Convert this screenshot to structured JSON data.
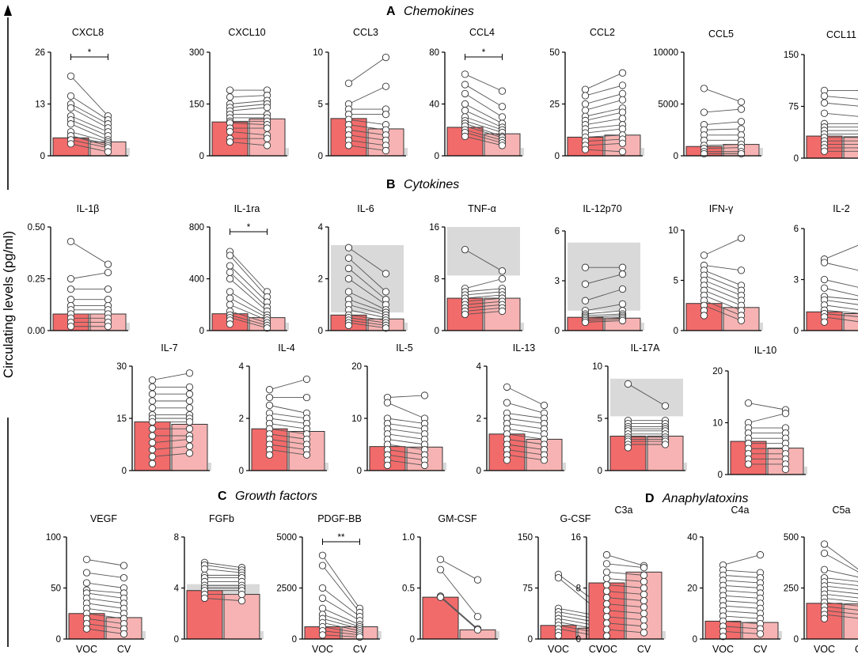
{
  "y_axis_label": "Circulating levels (pg/ml)",
  "sections": [
    {
      "letter": "A",
      "name": "Chemokines"
    },
    {
      "letter": "B",
      "name": "Cytokines"
    },
    {
      "letter": "C",
      "name": "Growth factors"
    },
    {
      "letter": "D",
      "name": "Anaphylatoxins"
    }
  ],
  "group_labels": [
    "VOC",
    "CV"
  ],
  "colors": {
    "voc_bar": "#f26b6b",
    "cv_bar": "#f7b3b3",
    "reference_band": "#d9d9d9",
    "point_fill": "#ffffff",
    "line": "#555555"
  },
  "chart_data": [
    {
      "type": "bar",
      "name": "CXCL8",
      "title": "CXCL8",
      "ylim": [
        0,
        26
      ],
      "yticks": [
        "0",
        "13",
        "26"
      ],
      "categories": [
        "VOC",
        "CV"
      ],
      "values": [
        4.5,
        3.5
      ],
      "significance": "*",
      "voc": [
        20,
        15,
        13,
        12,
        10,
        9,
        8,
        6,
        5,
        5,
        4,
        3
      ],
      "cv": [
        10,
        9,
        8,
        7,
        6,
        5,
        4,
        3.5,
        3,
        2.5,
        2,
        1
      ]
    },
    {
      "type": "bar",
      "name": "CXCL10",
      "title": "CXCL10",
      "ylim": [
        0,
        300
      ],
      "yticks": [
        "0",
        "150",
        "300"
      ],
      "categories": [
        "VOC",
        "CV"
      ],
      "values": [
        98,
        107
      ],
      "voc": [
        190,
        170,
        150,
        140,
        130,
        120,
        110,
        100,
        95,
        80,
        70,
        50,
        40
      ],
      "cv": [
        190,
        175,
        160,
        150,
        140,
        120,
        110,
        100,
        90,
        80,
        60,
        50,
        30
      ]
    },
    {
      "type": "bar",
      "name": "CCL3",
      "title": "CCL3",
      "ylim": [
        0,
        10
      ],
      "yticks": [
        "0",
        "5",
        "10"
      ],
      "categories": [
        "VOC",
        "CV"
      ],
      "values": [
        3.6,
        2.6
      ],
      "voc": [
        7,
        5,
        4.5,
        4,
        3.5,
        3,
        2.5,
        2,
        1.5,
        1
      ],
      "cv": [
        9.5,
        6.7,
        4.5,
        4,
        3,
        2.5,
        2,
        1.5,
        1,
        0.5
      ]
    },
    {
      "type": "bar",
      "name": "CCL4",
      "title": "CCL4",
      "ylim": [
        0,
        80
      ],
      "yticks": [
        "0",
        "40",
        "80"
      ],
      "categories": [
        "VOC",
        "CV"
      ],
      "values": [
        22,
        17
      ],
      "significance": "*",
      "voc": [
        63,
        55,
        48,
        40,
        35,
        30,
        27,
        25,
        23,
        20,
        18,
        15
      ],
      "cv": [
        50,
        38,
        30,
        25,
        22,
        20,
        18,
        15,
        14,
        12,
        10,
        8
      ]
    },
    {
      "type": "bar",
      "name": "CCL2",
      "title": "CCL2",
      "ylim": [
        0,
        50
      ],
      "yticks": [
        "0",
        "25",
        "50"
      ],
      "categories": [
        "VOC",
        "CV"
      ],
      "values": [
        9,
        10
      ],
      "voc": [
        32,
        29,
        25,
        22,
        19,
        17,
        15,
        13,
        11,
        9,
        7,
        5,
        3
      ],
      "cv": [
        40,
        34,
        30,
        27,
        23,
        21,
        18,
        15,
        13,
        10,
        8,
        6,
        2
      ]
    },
    {
      "type": "bar",
      "name": "CCL5",
      "title": "CCL5",
      "ylim": [
        0,
        10000
      ],
      "yticks": [
        "0",
        "5000",
        "10000"
      ],
      "categories": [
        "VOC",
        "CV"
      ],
      "values": [
        900,
        1100
      ],
      "voc": [
        6500,
        4200,
        3000,
        2500,
        2000,
        1500,
        1000,
        700,
        400,
        200
      ],
      "cv": [
        5200,
        4500,
        3300,
        2600,
        2000,
        1500,
        1100,
        800,
        400,
        200
      ]
    },
    {
      "type": "bar",
      "name": "CCL11",
      "title": "CCL11",
      "ylim": [
        0,
        150
      ],
      "yticks": [
        "0",
        "75",
        "150"
      ],
      "categories": [
        "VOC",
        "CV"
      ],
      "values": [
        32,
        31
      ],
      "voc": [
        98,
        90,
        80,
        65,
        50,
        45,
        40,
        35,
        30,
        25,
        20,
        15,
        10
      ],
      "cv": [
        98,
        85,
        75,
        60,
        50,
        45,
        40,
        35,
        30,
        25,
        20,
        15,
        10
      ]
    },
    {
      "type": "bar",
      "name": "IL-1β",
      "title": "IL-1β",
      "ylim": [
        0,
        0.5
      ],
      "yticks": [
        "0.00",
        "0.25",
        "0.50"
      ],
      "categories": [
        "VOC",
        "CV"
      ],
      "values": [
        0.08,
        0.08
      ],
      "voc": [
        0.43,
        0.25,
        0.2,
        0.15,
        0.12,
        0.1,
        0.08,
        0.06,
        0.04,
        0.02
      ],
      "cv": [
        0.32,
        0.28,
        0.2,
        0.15,
        0.12,
        0.1,
        0.08,
        0.06,
        0.04,
        0.02
      ]
    },
    {
      "type": "bar",
      "name": "IL-1ra",
      "title": "IL-1ra",
      "ylim": [
        0,
        800
      ],
      "yticks": [
        "0",
        "400",
        "800"
      ],
      "categories": [
        "VOC",
        "CV"
      ],
      "values": [
        130,
        100
      ],
      "significance": "*",
      "voc": [
        610,
        580,
        500,
        450,
        400,
        300,
        250,
        200,
        150,
        120,
        100,
        80,
        50
      ],
      "cv": [
        300,
        260,
        220,
        180,
        150,
        120,
        100,
        80,
        60,
        40,
        20
      ]
    },
    {
      "type": "bar",
      "name": "IL-6",
      "title": "IL-6",
      "ylim": [
        0,
        4
      ],
      "yticks": [
        "0",
        "2",
        "4"
      ],
      "categories": [
        "VOC",
        "CV"
      ],
      "values": [
        0.6,
        0.45
      ],
      "reference_band": [
        0.7,
        3.3
      ],
      "voc": [
        3.2,
        2.8,
        2.4,
        2,
        1.5,
        1.2,
        1,
        0.8,
        0.6,
        0.5,
        0.4,
        0.3,
        0.2
      ],
      "cv": [
        2.2,
        1.5,
        1.2,
        1,
        0.8,
        0.7,
        0.6,
        0.5,
        0.4,
        0.3,
        0.2,
        0.1
      ]
    },
    {
      "type": "bar",
      "name": "TNF-α",
      "title": "TNF-α",
      "ylim": [
        0,
        16
      ],
      "yticks": [
        "0",
        "8",
        "16"
      ],
      "categories": [
        "VOC",
        "CV"
      ],
      "values": [
        5,
        5
      ],
      "reference_band": [
        8.5,
        16
      ],
      "voc": [
        12.5,
        6.5,
        6,
        5.5,
        5,
        4.5,
        4,
        3.5,
        3,
        2.5
      ],
      "cv": [
        9.2,
        8,
        6.5,
        6,
        5.5,
        5,
        4.5,
        4,
        3.5,
        3
      ]
    },
    {
      "type": "bar",
      "name": "IL-12p70",
      "title": "IL-12p70",
      "ylim": [
        0,
        6
      ],
      "yticks": [
        "0",
        "3",
        "6"
      ],
      "categories": [
        "VOC",
        "CV"
      ],
      "values": [
        0.8,
        0.75
      ],
      "reference_band": [
        1.2,
        5.3
      ],
      "voc": [
        3.8,
        2.8,
        1.8,
        1.2,
        1,
        0.9,
        0.8,
        0.7,
        0.6,
        0.5
      ],
      "cv": [
        3.8,
        3.4,
        2.5,
        1.6,
        1.2,
        1,
        0.9,
        0.8,
        0.7,
        0.6
      ]
    },
    {
      "type": "bar",
      "name": "IFN-γ",
      "title": "IFN-γ",
      "ylim": [
        0,
        10
      ],
      "yticks": [
        "0",
        "5",
        "10"
      ],
      "categories": [
        "VOC",
        "CV"
      ],
      "values": [
        2.7,
        2.3
      ],
      "voc": [
        7.5,
        6.5,
        6,
        5.5,
        5,
        4.5,
        4,
        3.5,
        3,
        2.5,
        2,
        1.5
      ],
      "cv": [
        9.2,
        6,
        4.5,
        4,
        3.5,
        3,
        2.5,
        2,
        1.5,
        1
      ]
    },
    {
      "type": "bar",
      "name": "IL-2",
      "title": "IL-2",
      "ylim": [
        0,
        6
      ],
      "yticks": [
        "0",
        "3",
        "6"
      ],
      "categories": [
        "VOC",
        "CV"
      ],
      "values": [
        1.1,
        1
      ],
      "voc": [
        4.2,
        4,
        3,
        2.5,
        2,
        1.8,
        1.5,
        1.2,
        1,
        0.8,
        0.5
      ],
      "cv": [
        5.1,
        3.5,
        2.5,
        2,
        1.8,
        1.5,
        1.2,
        1,
        0.8,
        0.5
      ]
    },
    {
      "type": "bar",
      "name": "IL-7",
      "title": "IL-7",
      "ylim": [
        0,
        30
      ],
      "yticks": [
        "0",
        "15",
        "30"
      ],
      "categories": [
        "VOC",
        "CV"
      ],
      "values": [
        14,
        13.3
      ],
      "voc": [
        26,
        24,
        22,
        20,
        18,
        16,
        15,
        14,
        12,
        10,
        8,
        6,
        4,
        2
      ],
      "cv": [
        28,
        24,
        22,
        20,
        18,
        16,
        15,
        14,
        12,
        10,
        9,
        7,
        5
      ]
    },
    {
      "type": "bar",
      "name": "IL-4",
      "title": "IL-4",
      "ylim": [
        0,
        4
      ],
      "yticks": [
        "0",
        "2",
        "4"
      ],
      "categories": [
        "VOC",
        "CV"
      ],
      "values": [
        1.6,
        1.5
      ],
      "voc": [
        3.1,
        2.8,
        2.5,
        2.2,
        2,
        1.8,
        1.6,
        1.4,
        1.2,
        1,
        0.8,
        0.6
      ],
      "cv": [
        3.5,
        2.8,
        2.2,
        2,
        1.8,
        1.6,
        1.4,
        1.2,
        1,
        0.8,
        0.6
      ]
    },
    {
      "type": "bar",
      "name": "IL-5",
      "title": "IL-5",
      "ylim": [
        0,
        20
      ],
      "yticks": [
        "0",
        "10",
        "20"
      ],
      "categories": [
        "VOC",
        "CV"
      ],
      "values": [
        4.6,
        4.5
      ],
      "voc": [
        14,
        13,
        10,
        9,
        8,
        7,
        6,
        5,
        4,
        3,
        2,
        1
      ],
      "cv": [
        14.4,
        10,
        9,
        8,
        7,
        6,
        5,
        4,
        3,
        2,
        1
      ]
    },
    {
      "type": "bar",
      "name": "IL-13",
      "title": "IL-13",
      "ylim": [
        0,
        4
      ],
      "yticks": [
        "0",
        "2",
        "4"
      ],
      "categories": [
        "VOC",
        "CV"
      ],
      "values": [
        1.4,
        1.2
      ],
      "voc": [
        3.2,
        2.6,
        2.2,
        2,
        1.8,
        1.6,
        1.4,
        1.2,
        1,
        0.8,
        0.6,
        0.4
      ],
      "cv": [
        2.5,
        2.2,
        2,
        1.8,
        1.6,
        1.4,
        1.2,
        1,
        0.8,
        0.6,
        0.4
      ]
    },
    {
      "type": "bar",
      "name": "IL-17A",
      "title": "IL-17A",
      "ylim": [
        0,
        10
      ],
      "yticks": [
        "0",
        "5",
        "10"
      ],
      "categories": [
        "VOC",
        "CV"
      ],
      "values": [
        3.3,
        3.3
      ],
      "reference_band": [
        5.2,
        8.8
      ],
      "voc": [
        8.3,
        4.8,
        4.5,
        4.2,
        4,
        3.8,
        3.5,
        3.2,
        3,
        2.8,
        2.5,
        2.2
      ],
      "cv": [
        6.2,
        4.8,
        4.5,
        4.2,
        4,
        3.8,
        3.5,
        3.2,
        3,
        2.8,
        2.5
      ]
    },
    {
      "type": "bar",
      "name": "IL-10",
      "title": "IL-10",
      "ylim": [
        0,
        20
      ],
      "yticks": [
        "0",
        "10",
        "20"
      ],
      "categories": [
        "VOC",
        "CV"
      ],
      "values": [
        6.4,
        5.1
      ],
      "voc": [
        13.8,
        10,
        9,
        8,
        7,
        6,
        5,
        4,
        3,
        2
      ],
      "cv": [
        12.5,
        11.8,
        9,
        8,
        7,
        6,
        5,
        4,
        3,
        2,
        1
      ]
    },
    {
      "type": "bar",
      "name": "VEGF",
      "title": "VEGF",
      "ylim": [
        0,
        100
      ],
      "yticks": [
        "0",
        "50",
        "100"
      ],
      "categories": [
        "VOC",
        "CV"
      ],
      "values": [
        25,
        21
      ],
      "voc": [
        78,
        65,
        55,
        48,
        45,
        40,
        35,
        30,
        25,
        20,
        15,
        10
      ],
      "cv": [
        72,
        60,
        50,
        45,
        40,
        35,
        30,
        25,
        20,
        15,
        10,
        5
      ]
    },
    {
      "type": "bar",
      "name": "FGFb",
      "title": "FGFb",
      "ylim": [
        0,
        8
      ],
      "yticks": [
        "0",
        "4",
        "8"
      ],
      "categories": [
        "VOC",
        "CV"
      ],
      "values": [
        3.8,
        3.5
      ],
      "reference_band": [
        3.5,
        4.3
      ],
      "voc": [
        6,
        5.8,
        5.5,
        5,
        4.8,
        4.5,
        4.2,
        4,
        3.8,
        3.5,
        3.2
      ],
      "cv": [
        5.6,
        5.4,
        5.2,
        5,
        4.8,
        4.5,
        4.2,
        4,
        3.8,
        3.5,
        3
      ]
    },
    {
      "type": "bar",
      "name": "PDGF-BB",
      "title": "PDGF-BB",
      "ylim": [
        0,
        5000
      ],
      "yticks": [
        "0",
        "2500",
        "5000"
      ],
      "categories": [
        "VOC",
        "CV"
      ],
      "values": [
        600,
        600
      ],
      "significance": "**",
      "voc": [
        4100,
        3600,
        2500,
        2000,
        1500,
        1200,
        1000,
        800,
        600,
        400,
        200
      ],
      "cv": [
        1500,
        1300,
        1100,
        900,
        700,
        600,
        500,
        400,
        300,
        200,
        100
      ]
    },
    {
      "type": "bar",
      "name": "GM-CSF",
      "title": "GM-CSF",
      "ylim": [
        0,
        1.0
      ],
      "yticks": [
        "0",
        "0.5",
        "1.0"
      ],
      "categories": [
        "VOC",
        "CV"
      ],
      "values": [
        0.41,
        0.09
      ],
      "voc": [
        0.78,
        0.68,
        0.42,
        0.41,
        0.41
      ],
      "cv": [
        0.58,
        0.22,
        0.1,
        0.09,
        0.09
      ]
    },
    {
      "type": "bar",
      "name": "G-CSF",
      "title": "G-CSF",
      "ylim": [
        0,
        150
      ],
      "yticks": [
        "0",
        "75",
        "150"
      ],
      "categories": [
        "VOC",
        "CV"
      ],
      "values": [
        20,
        16
      ],
      "voc": [
        95,
        90,
        45,
        40,
        35,
        30,
        25,
        20,
        15,
        10,
        5
      ],
      "cv": [
        55,
        45,
        35,
        30,
        25,
        20,
        15,
        10,
        5
      ]
    },
    {
      "type": "bar",
      "name": "C3a",
      "title": "C3a",
      "ylim": [
        0,
        16
      ],
      "yticks": [
        "0",
        "8",
        "16"
      ],
      "categories": [
        "VOC",
        "CV"
      ],
      "values": [
        8.8,
        10.5
      ],
      "voc": [
        13.2,
        11.8,
        10.5,
        9.5,
        8.5,
        7.5,
        6.5,
        5.5,
        4.5,
        3.5,
        2.5,
        1.5,
        0.5
      ],
      "cv": [
        11.5,
        11.2,
        10,
        9,
        8,
        7,
        6,
        5,
        4,
        3,
        2,
        1
      ]
    },
    {
      "type": "bar",
      "name": "C4a",
      "title": "C4a",
      "ylim": [
        0,
        40
      ],
      "yticks": [
        "0",
        "20",
        "40"
      ],
      "categories": [
        "VOC",
        "CV"
      ],
      "values": [
        7,
        6.5
      ],
      "voc": [
        29,
        27,
        25,
        23,
        21,
        19,
        17,
        15,
        13,
        11,
        9,
        7,
        5,
        3,
        1
      ],
      "cv": [
        33,
        26,
        24,
        22,
        20,
        18,
        16,
        14,
        12,
        10,
        8,
        6,
        4,
        2
      ]
    },
    {
      "type": "bar",
      "name": "C5a",
      "title": "C5a",
      "ylim": [
        0,
        500
      ],
      "yticks": [
        "0",
        "250",
        "500"
      ],
      "categories": [
        "VOC",
        "CV"
      ],
      "values": [
        175,
        172
      ],
      "voc": [
        465,
        420,
        340,
        300,
        280,
        260,
        240,
        220,
        200,
        180,
        160,
        140,
        120,
        100
      ],
      "cv": [
        330,
        320,
        300,
        280,
        260,
        240,
        220,
        200,
        180,
        160,
        140,
        120,
        100
      ]
    }
  ]
}
